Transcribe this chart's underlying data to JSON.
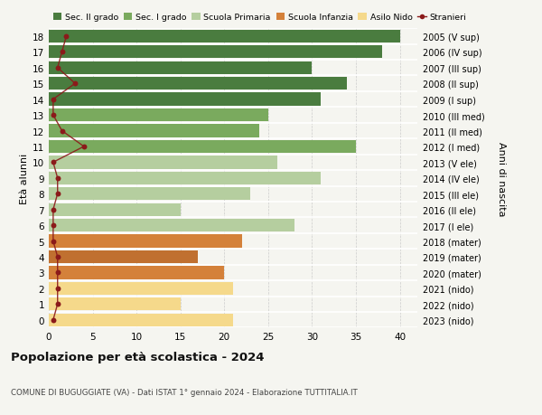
{
  "ages": [
    18,
    17,
    16,
    15,
    14,
    13,
    12,
    11,
    10,
    9,
    8,
    7,
    6,
    5,
    4,
    3,
    2,
    1,
    0
  ],
  "right_labels": [
    "2005 (V sup)",
    "2006 (IV sup)",
    "2007 (III sup)",
    "2008 (II sup)",
    "2009 (I sup)",
    "2010 (III med)",
    "2011 (II med)",
    "2012 (I med)",
    "2013 (V ele)",
    "2014 (IV ele)",
    "2015 (III ele)",
    "2016 (II ele)",
    "2017 (I ele)",
    "2018 (mater)",
    "2019 (mater)",
    "2020 (mater)",
    "2021 (nido)",
    "2022 (nido)",
    "2023 (nido)"
  ],
  "bar_values": [
    40,
    38,
    30,
    34,
    31,
    25,
    24,
    35,
    26,
    31,
    23,
    15,
    28,
    22,
    17,
    20,
    21,
    15,
    21
  ],
  "bar_colors": [
    "#4a7c3f",
    "#4a7c3f",
    "#4a7c3f",
    "#4a7c3f",
    "#4a7c3f",
    "#7aaa5e",
    "#7aaa5e",
    "#7aaa5e",
    "#b5ce9f",
    "#b5ce9f",
    "#b5ce9f",
    "#b5ce9f",
    "#b5ce9f",
    "#d4813a",
    "#c07030",
    "#d4813a",
    "#f5d98b",
    "#f5d98b",
    "#f5d98b"
  ],
  "stranieri_values": [
    2,
    1.5,
    1,
    3,
    0.5,
    0.5,
    1.5,
    4,
    0.5,
    1,
    1,
    0.5,
    0.5,
    0.5,
    1,
    1,
    1,
    1,
    0.5
  ],
  "legend_labels": [
    "Sec. II grado",
    "Sec. I grado",
    "Scuola Primaria",
    "Scuola Infanzia",
    "Asilo Nido",
    "Stranieri"
  ],
  "legend_colors": [
    "#4a7c3f",
    "#7aaa5e",
    "#b5ce9f",
    "#d4813a",
    "#f5d98b",
    "#8b1a1a"
  ],
  "title": "Popolazione per età scolastica - 2024",
  "subtitle": "COMUNE DI BUGUGGIATE (VA) - Dati ISTAT 1° gennaio 2024 - Elaborazione TUTTITALIA.IT",
  "ylabel_left": "Età alunni",
  "ylabel_right": "Anni di nascita",
  "xlim": [
    0,
    42
  ],
  "xticks": [
    0,
    5,
    10,
    15,
    20,
    25,
    30,
    35,
    40
  ],
  "background_color": "#f5f5f0",
  "bar_height": 0.82,
  "stranieri_line_color": "#8b1a1a",
  "stranieri_dot_color": "#8b1a1a"
}
